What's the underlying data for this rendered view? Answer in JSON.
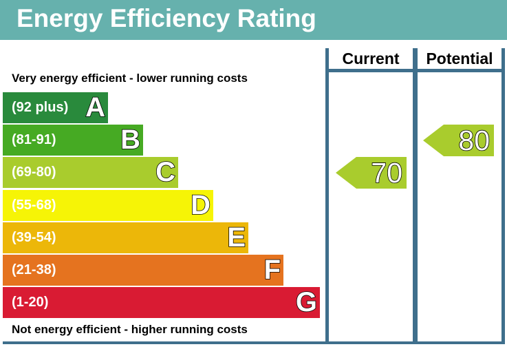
{
  "title": "Energy Efficiency Rating",
  "top_caption": "Very energy efficient - lower running costs",
  "bottom_caption": "Not energy efficient - higher running costs",
  "colors": {
    "header": "#66b1ad",
    "frame": "#3f6f8c"
  },
  "columns": {
    "current": "Current",
    "potential": "Potential"
  },
  "chart_data": {
    "type": "bar",
    "categories": [
      "A",
      "B",
      "C",
      "D",
      "E",
      "F",
      "G"
    ],
    "ranges": [
      "(92 plus)",
      "(81-91)",
      "(69-80)",
      "(55-68)",
      "(39-54)",
      "(21-38)",
      "(1-20)"
    ],
    "band_colors": [
      "#298a3c",
      "#46aa23",
      "#a9cc2d",
      "#f6f406",
      "#ecb709",
      "#e5731f",
      "#d91b33"
    ],
    "current": {
      "label": "Current",
      "value": 70,
      "band": "C",
      "color": "#a9cc2d"
    },
    "potential": {
      "label": "Potential",
      "value": 80,
      "band": "C",
      "color": "#a9cc2d"
    }
  }
}
